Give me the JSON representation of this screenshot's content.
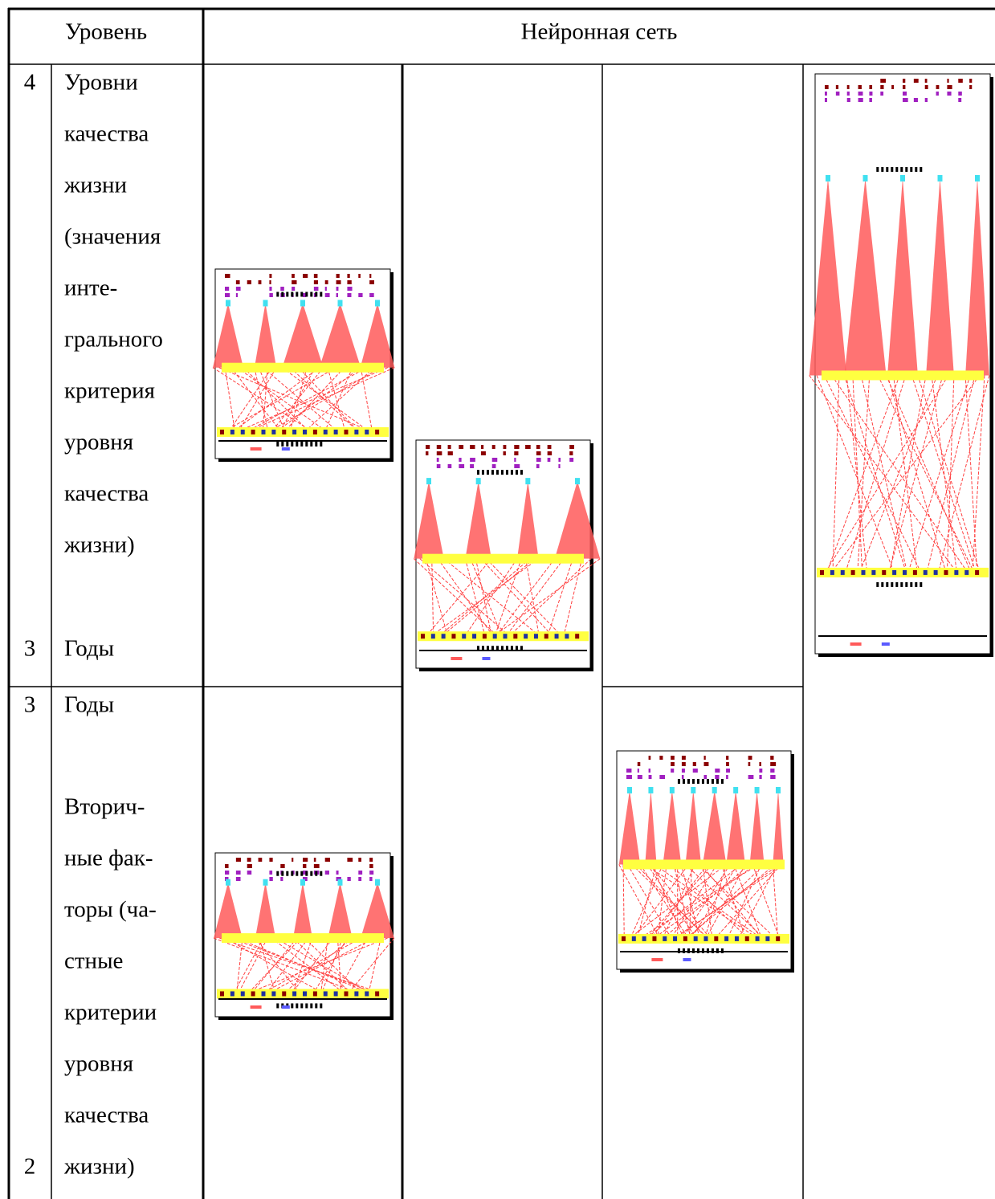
{
  "header": {
    "level": "Уровень",
    "network": "Нейронная сеть"
  },
  "rows": [
    {
      "number_top": "4",
      "lines": [
        "Уровни",
        "качества",
        "жизни",
        "(значения",
        "инте-",
        "грального",
        "критерия",
        "уровня",
        "качества",
        "жизни)"
      ],
      "number_bottom": "3",
      "bottom_text": "Годы"
    },
    {
      "number_top": "3",
      "top_text": "Годы",
      "lines": [
        "Вторич-",
        "ные фак-",
        "торы (ча-",
        "стные",
        "критерии",
        "уровня",
        "качества",
        "жизни)"
      ],
      "number_bottom": "2"
    }
  ]
}
